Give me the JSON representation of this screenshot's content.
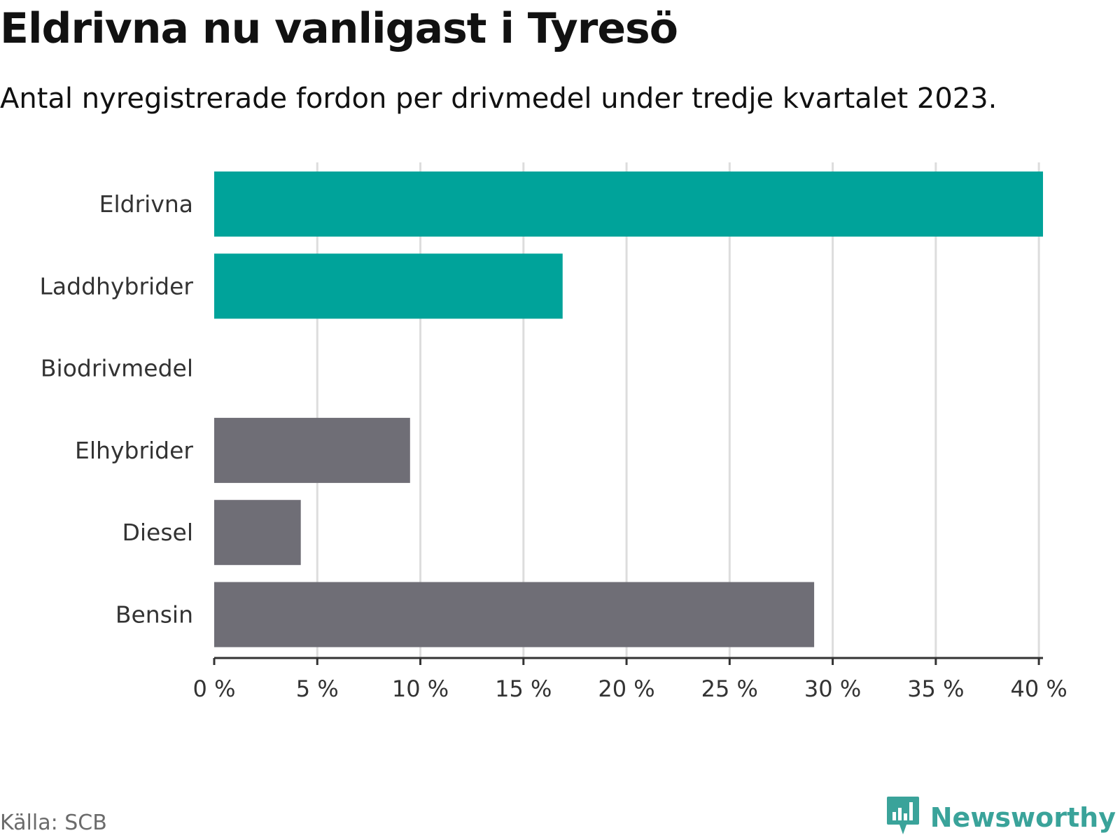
{
  "header": {
    "title": "Eldrivna nu vanligast i Tyresö",
    "subtitle": "Antal nyregistrerade fordon per drivmedel under tredje kvartalet 2023."
  },
  "footer": {
    "source": "Källa: SCB",
    "brand": "Newsworthy",
    "brand_icon": "newsworthy-logo-icon"
  },
  "colors": {
    "highlight": "#00a39a",
    "neutral": "#6f6e76",
    "grid": "#dddddd",
    "axis": "#333333",
    "brand": "#3aa39a"
  },
  "chart_data": {
    "type": "bar",
    "orientation": "horizontal",
    "title": "Eldrivna nu vanligast i Tyresö",
    "subtitle": "Antal nyregistrerade fordon per drivmedel under tredje kvartalet 2023.",
    "xlabel": "",
    "ylabel": "",
    "unit": "%",
    "categories": [
      "Eldrivna",
      "Laddhybrider",
      "Biodrivmedel",
      "Elhybrider",
      "Diesel",
      "Bensin"
    ],
    "values": [
      40.2,
      16.9,
      0,
      9.5,
      4.2,
      29.1
    ],
    "highlight": [
      true,
      true,
      false,
      false,
      false,
      false
    ],
    "xlim": [
      0,
      40.2
    ],
    "ticks": [
      0,
      5,
      10,
      15,
      20,
      25,
      30,
      35,
      40
    ],
    "tick_labels": [
      "0 %",
      "5 %",
      "10 %",
      "15 %",
      "20 %",
      "25 %",
      "30 %",
      "35 %",
      "40 %"
    ],
    "grid": true,
    "legend": "none"
  }
}
